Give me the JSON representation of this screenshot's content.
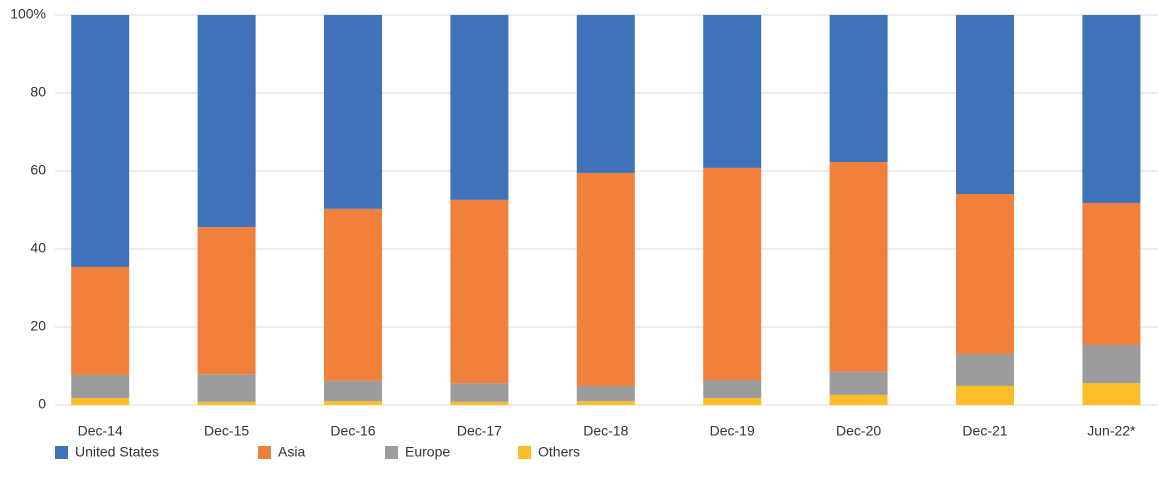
{
  "chart_data": {
    "type": "stacked_bar",
    "categories": [
      "Dec-14",
      "Dec-15",
      "Dec-16",
      "Dec-17",
      "Dec-18",
      "Dec-19",
      "Dec-20",
      "Dec-21",
      "Jun-22*"
    ],
    "series": [
      {
        "name": "United States",
        "color": "#3f72b9",
        "values": [
          64.6,
          54.4,
          49.7,
          47.4,
          40.5,
          39.2,
          37.7,
          45.9,
          48.2
        ]
      },
      {
        "name": "Asia",
        "color": "#f0803c",
        "values": [
          27.7,
          37.7,
          44.1,
          47.0,
          54.6,
          54.4,
          53.8,
          41.0,
          36.4
        ]
      },
      {
        "name": "Europe",
        "color": "#9c9c9c",
        "values": [
          5.9,
          7.1,
          5.2,
          4.8,
          3.9,
          4.6,
          5.9,
          8.2,
          9.8
        ]
      },
      {
        "name": "Others",
        "color": "#fbbd28",
        "values": [
          1.8,
          0.8,
          1.0,
          0.8,
          1.0,
          1.8,
          2.6,
          4.9,
          5.6
        ]
      }
    ],
    "ylim": [
      0,
      100
    ],
    "yticks": [
      0,
      20,
      40,
      60,
      80,
      {
        "value": 100,
        "label": "100%"
      }
    ],
    "grid": true
  }
}
